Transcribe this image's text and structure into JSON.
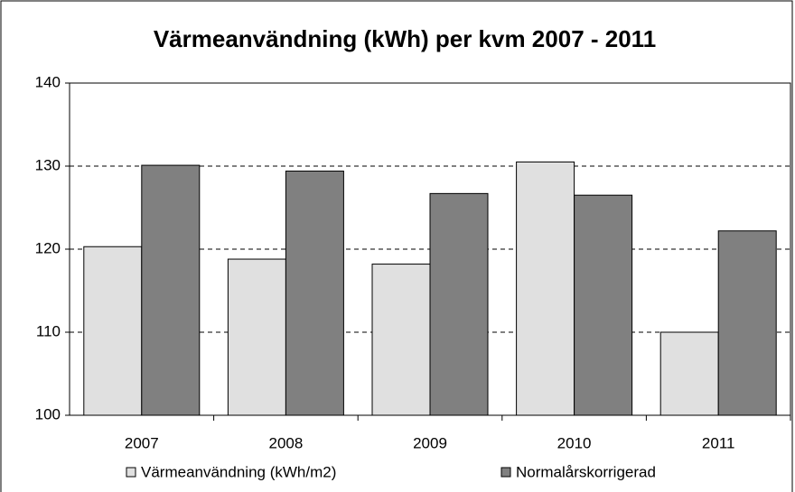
{
  "chart_data": {
    "type": "bar",
    "title": "Värmeanvändning (kWh) per kvm 2007 - 2011",
    "categories": [
      "2007",
      "2008",
      "2009",
      "2010",
      "2011"
    ],
    "series": [
      {
        "name": "Värmeanvändning (kWh/m2)",
        "color": "#e0e0e0",
        "values": [
          120.3,
          118.8,
          118.2,
          130.5,
          110.0
        ]
      },
      {
        "name": "Normalårskorrigerad",
        "color": "#808080",
        "values": [
          130.1,
          129.4,
          126.7,
          126.5,
          122.2
        ]
      }
    ],
    "ylim": [
      100,
      140
    ],
    "yticks": [
      100,
      110,
      120,
      130,
      140
    ],
    "grid": true
  }
}
